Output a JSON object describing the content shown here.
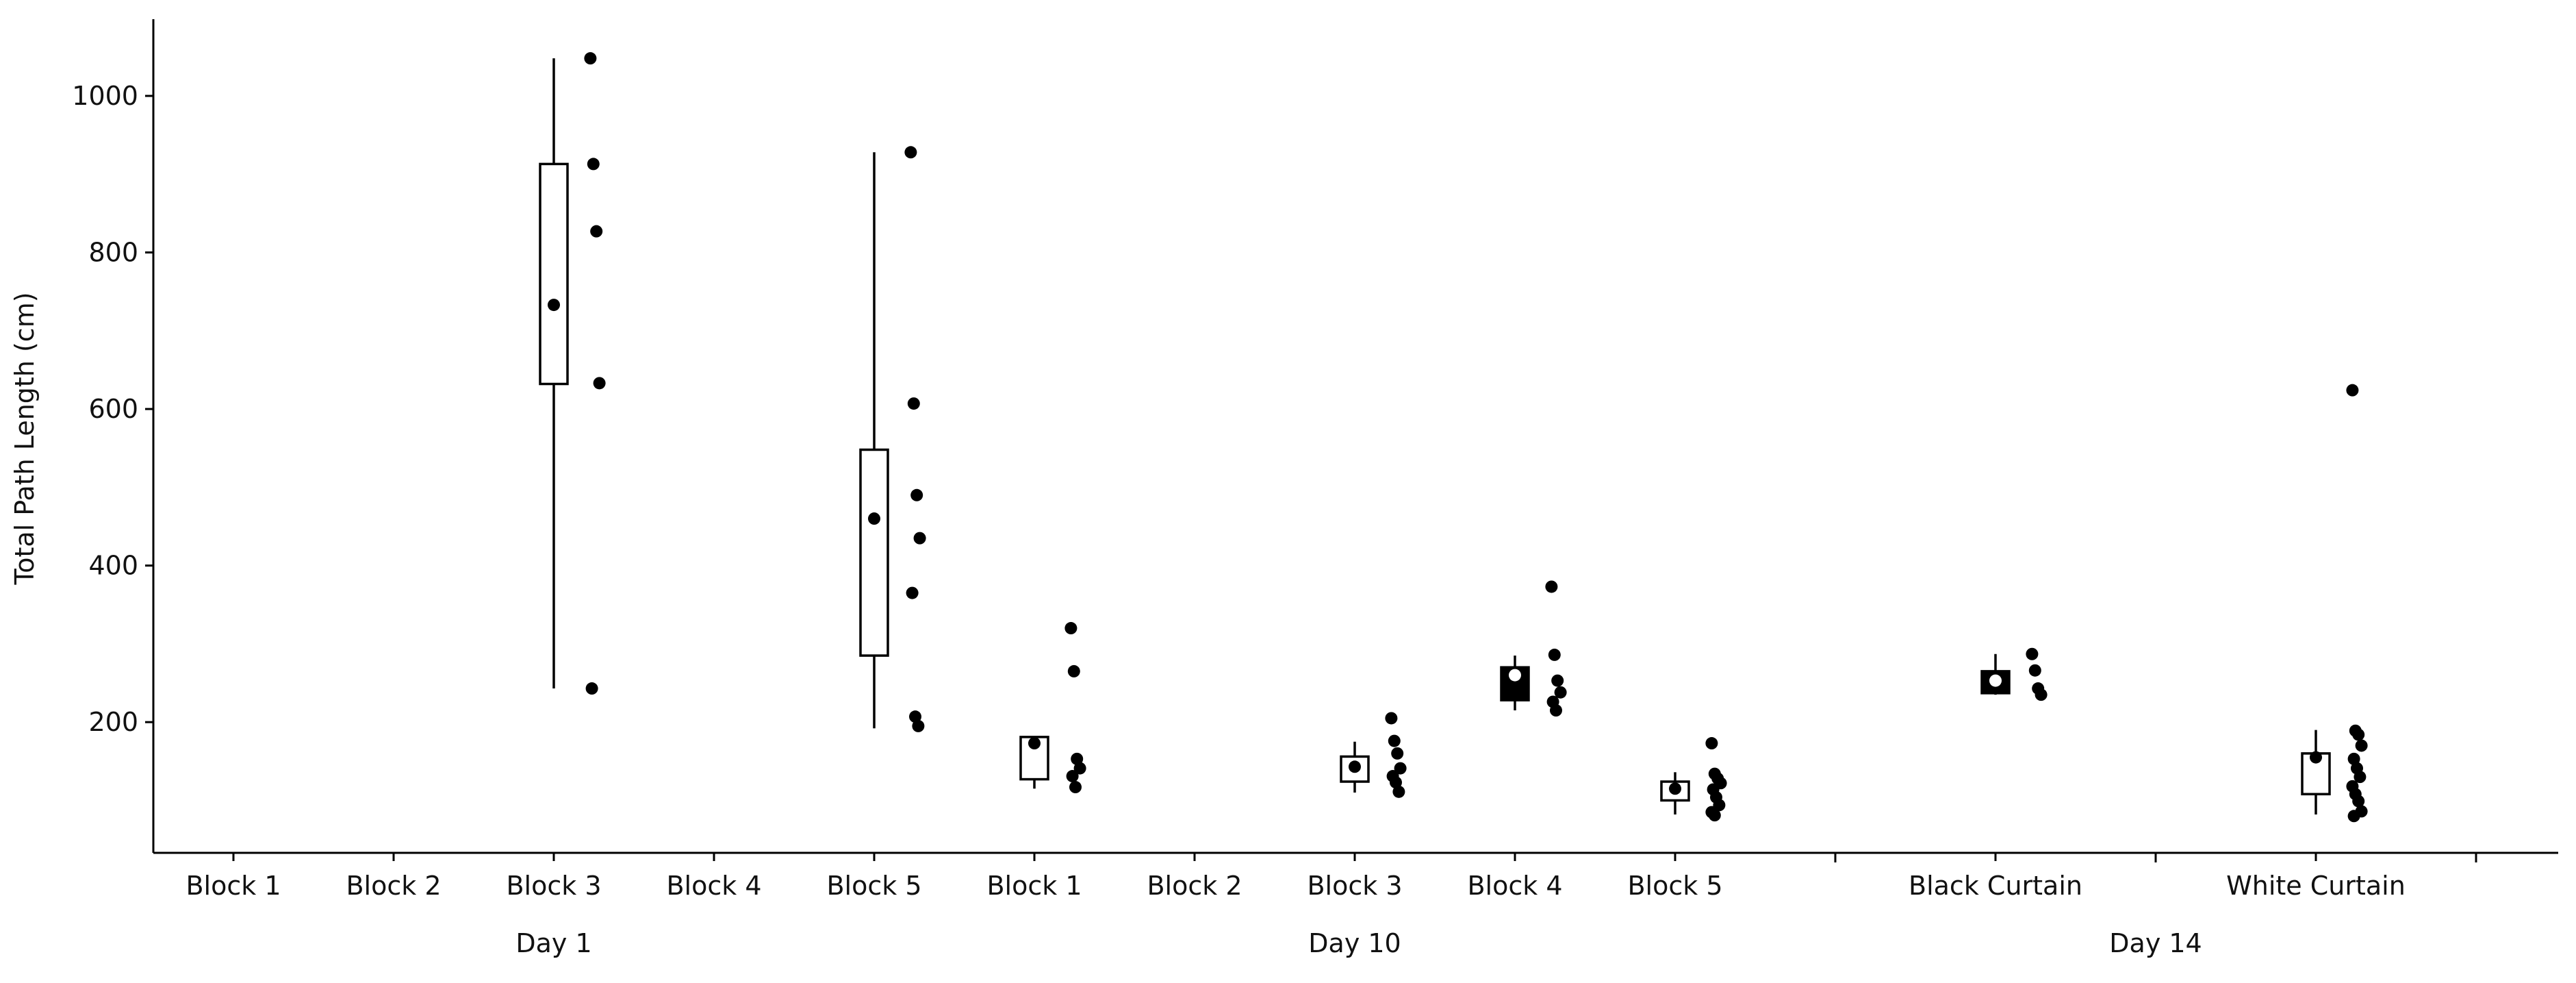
{
  "chart_data": {
    "type": "box",
    "ylabel": "Total Path Length (cm)",
    "xlabel": "",
    "ylim": [
      33,
      1098
    ],
    "yticks": [
      200,
      400,
      600,
      800,
      1000
    ],
    "grid": false,
    "legend": "none",
    "groups": [
      {
        "name": "Day 1",
        "categories": [
          "Block 1",
          "Block 2",
          "Block 3",
          "Block 4",
          "Block 5"
        ]
      },
      {
        "name": "Day 10",
        "categories": [
          "Block 1",
          "Block 2",
          "Block 3",
          "Block 4",
          "Block 5"
        ]
      },
      {
        "name": "Day 14",
        "categories": [
          "Black Curtain",
          "White Curtain"
        ]
      }
    ],
    "series": [
      {
        "group": "Day 1",
        "category": "Block 3",
        "style": "open",
        "whisker_low": 243,
        "q1": 632,
        "median": 733,
        "q3": 913,
        "whisker_high": 1048,
        "points": [
          1048,
          913,
          827,
          633,
          243
        ]
      },
      {
        "group": "Day 1",
        "category": "Block 5",
        "style": "open",
        "whisker_low": 192,
        "q1": 285,
        "median": 460,
        "q3": 548,
        "whisker_high": 928,
        "points": [
          928,
          607,
          490,
          435,
          365,
          207,
          195
        ]
      },
      {
        "group": "Day 10",
        "category": "Block 1",
        "style": "open",
        "whisker_low": 115,
        "q1": 127,
        "median": 173,
        "q3": 181,
        "whisker_high": 181,
        "points": [
          320,
          265,
          153,
          141,
          131,
          117
        ]
      },
      {
        "group": "Day 10",
        "category": "Block 3",
        "style": "open",
        "whisker_low": 110,
        "q1": 124,
        "median": 143,
        "q3": 156,
        "whisker_high": 175,
        "points": [
          205,
          176,
          160,
          141,
          131,
          123,
          111
        ]
      },
      {
        "group": "Day 10",
        "category": "Block 4",
        "style": "filled",
        "whisker_low": 215,
        "q1": 228,
        "median": 260,
        "q3": 270,
        "whisker_high": 285,
        "points": [
          373,
          286,
          253,
          238,
          226,
          215
        ]
      },
      {
        "group": "Day 10",
        "category": "Block 5",
        "style": "open",
        "whisker_low": 82,
        "q1": 100,
        "median": 115,
        "q3": 124,
        "whisker_high": 136,
        "points": [
          173,
          134,
          128,
          122,
          114,
          104,
          94,
          85,
          81
        ]
      },
      {
        "group": "Day 14",
        "category": "Black Curtain",
        "style": "filled",
        "whisker_low": 235,
        "q1": 237,
        "median": 253,
        "q3": 265,
        "whisker_high": 287,
        "points": [
          287,
          266,
          243,
          235
        ]
      },
      {
        "group": "Day 14",
        "category": "White Curtain",
        "style": "open",
        "whisker_low": 82,
        "q1": 108,
        "median": 155,
        "q3": 160,
        "whisker_high": 190,
        "points": [
          624,
          189,
          184,
          170,
          153,
          141,
          130,
          118,
          108,
          99,
          86,
          80
        ]
      }
    ]
  }
}
